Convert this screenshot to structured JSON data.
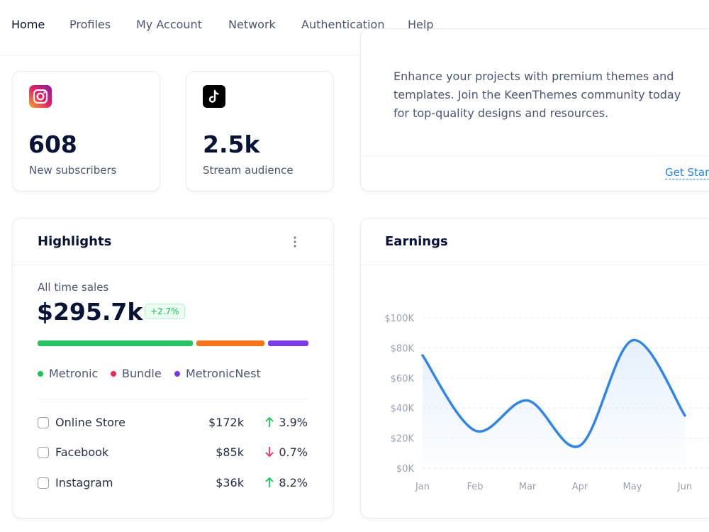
{
  "nav": [
    "Home",
    "Profiles",
    "My Account",
    "Network",
    "Authentication",
    "Help"
  ],
  "stats": [
    {
      "value": "608",
      "label": "New subscribers"
    },
    {
      "value": "2.5k",
      "label": "Stream audience"
    }
  ],
  "promo": {
    "lines": [
      "Enhance your projects with premium themes and",
      "templates. Join the KeenThemes community today",
      "for top-quality designs and resources."
    ],
    "link": "Get Started"
  },
  "highlights": {
    "title": "Highlights",
    "caption": "All time sales",
    "total": "$295.7k",
    "change": "+2.7%",
    "legend": [
      {
        "name": "Metronic",
        "color": "#17c653"
      },
      {
        "name": "Bundle",
        "color": "#f8285a"
      },
      {
        "name": "MetronicNest",
        "color": "#7239ea"
      }
    ],
    "rows": [
      {
        "name": "Online Store",
        "value": "$172k",
        "change": "3.9%",
        "direction": "up"
      },
      {
        "name": "Facebook",
        "value": "$85k",
        "change": "0.7%",
        "direction": "down"
      },
      {
        "name": "Instagram",
        "value": "$36k",
        "change": "8.2%",
        "direction": "up"
      }
    ]
  },
  "earnings": {
    "title": "Earnings",
    "chart": {
      "type": "line",
      "categories": [
        "Jan",
        "Feb",
        "Mar",
        "Apr",
        "May",
        "Jun"
      ],
      "values": [
        75,
        25,
        45,
        15,
        85,
        35
      ],
      "color": "#2e86e8",
      "ylim": [
        0,
        100
      ],
      "yticks": [
        {
          "value": 0,
          "label": "$0K"
        },
        {
          "value": 20,
          "label": "$20K"
        },
        {
          "value": 40,
          "label": "$40K"
        },
        {
          "value": 60,
          "label": "$60K"
        },
        {
          "value": 80,
          "label": "$80K"
        },
        {
          "value": 100,
          "label": "$100K"
        }
      ],
      "grid": true
    }
  }
}
